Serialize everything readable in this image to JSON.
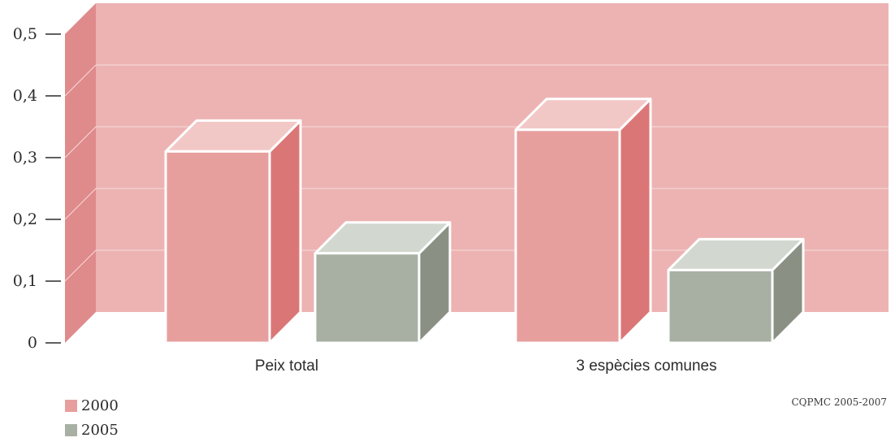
{
  "chart_data": {
    "type": "bar",
    "categories": [
      "Peix total",
      "3 espècies comunes"
    ],
    "series": [
      {
        "name": "2000",
        "values": [
          0.31,
          0.345
        ],
        "color": "#e79f9d"
      },
      {
        "name": "2005",
        "values": [
          0.145,
          0.118
        ],
        "color": "#a8b0a3"
      }
    ],
    "ylim": [
      0,
      0.5
    ],
    "yticks": [
      0,
      0.1,
      0.2,
      0.3,
      0.4,
      0.5
    ],
    "ytick_labels": [
      "0",
      "0,1",
      "0,2",
      "0,3",
      "0,4",
      "0,5"
    ],
    "title": "",
    "xlabel": "",
    "ylabel": "",
    "grid": true,
    "legend_position": "bottom-left",
    "three_d": true
  },
  "legend": [
    {
      "label": "2000",
      "color": "#e79f9d"
    },
    {
      "label": "2005",
      "color": "#a8b0a3"
    }
  ],
  "source": "CQPMC 2005-2007",
  "colors": {
    "back_wall": "#ecb3b2",
    "side_wall": "#df8a8b",
    "grid": "#f6dcdc"
  }
}
